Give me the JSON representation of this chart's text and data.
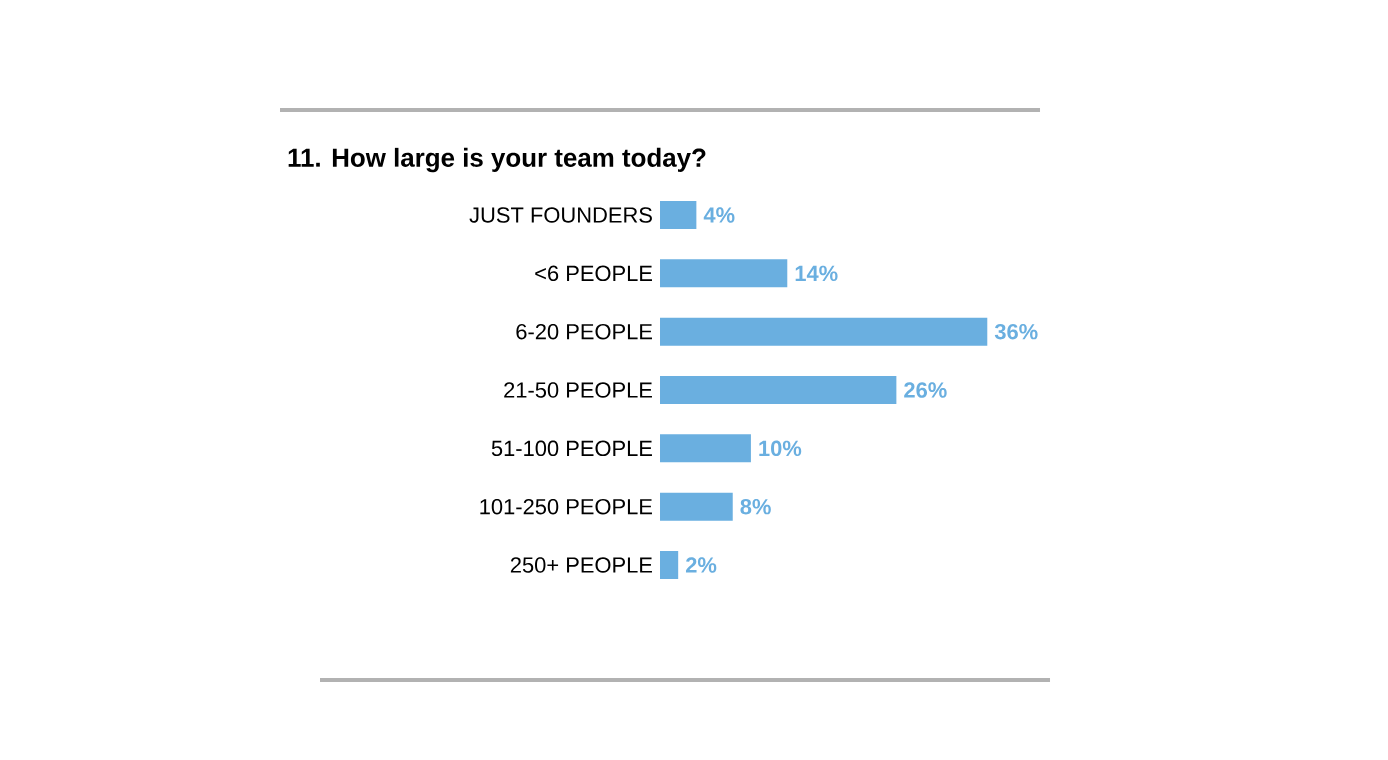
{
  "chart_data": {
    "type": "bar",
    "orientation": "horizontal",
    "title": "11. How large is your team today?",
    "categories": [
      "JUST FOUNDERS",
      "<6 PEOPLE",
      "6-20 PEOPLE",
      "21-50 PEOPLE",
      "51-100 PEOPLE",
      "101-250 PEOPLE",
      "250+ PEOPLE"
    ],
    "values": [
      4,
      14,
      36,
      26,
      10,
      8,
      2
    ],
    "value_labels": [
      "4%",
      "14%",
      "36%",
      "26%",
      "10%",
      "8%",
      "2%"
    ],
    "color": "#6aafe0"
  }
}
